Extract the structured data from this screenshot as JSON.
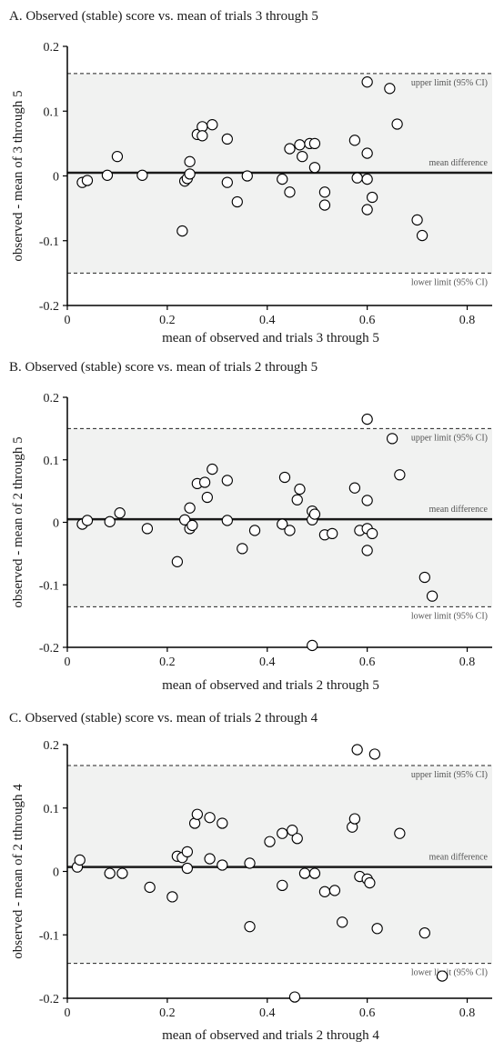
{
  "chart_data": [
    {
      "type": "scatter",
      "title": "A. Observed (stable) score vs. mean of trials 3 through 5",
      "xlabel": "mean of observed and trials 3 through 5",
      "ylabel": "observed - mean of 3 through 5",
      "xlim": [
        0,
        0.85
      ],
      "ylim": [
        -0.2,
        0.2
      ],
      "x_ticks": [
        "0",
        "0.2",
        "0.4",
        "0.6",
        "0.8"
      ],
      "y_ticks": [
        "0.2",
        "0.1",
        "0",
        "-0.1",
        "-0.2"
      ],
      "mean_difference": 0.005,
      "upper_limit": 0.158,
      "lower_limit": -0.15,
      "annotations": {
        "upper": "upper limit (95% CI)",
        "mean": "mean difference",
        "lower": "lower limit (95% CI)"
      },
      "grid": false,
      "points": [
        [
          0.03,
          -0.01
        ],
        [
          0.04,
          -0.007
        ],
        [
          0.08,
          0.001
        ],
        [
          0.1,
          0.03
        ],
        [
          0.15,
          0.001
        ],
        [
          0.23,
          -0.085
        ],
        [
          0.235,
          -0.008
        ],
        [
          0.24,
          -0.004
        ],
        [
          0.245,
          0.003
        ],
        [
          0.245,
          0.022
        ],
        [
          0.26,
          0.064
        ],
        [
          0.27,
          0.076
        ],
        [
          0.27,
          0.062
        ],
        [
          0.29,
          0.079
        ],
        [
          0.32,
          0.057
        ],
        [
          0.32,
          -0.01
        ],
        [
          0.34,
          -0.04
        ],
        [
          0.36,
          0.0
        ],
        [
          0.43,
          -0.005
        ],
        [
          0.445,
          0.042
        ],
        [
          0.445,
          -0.025
        ],
        [
          0.465,
          0.048
        ],
        [
          0.47,
          0.03
        ],
        [
          0.485,
          0.05
        ],
        [
          0.495,
          0.05
        ],
        [
          0.495,
          0.013
        ],
        [
          0.515,
          -0.025
        ],
        [
          0.515,
          -0.045
        ],
        [
          0.575,
          0.055
        ],
        [
          0.58,
          -0.003
        ],
        [
          0.6,
          0.145
        ],
        [
          0.6,
          0.035
        ],
        [
          0.6,
          -0.005
        ],
        [
          0.6,
          -0.052
        ],
        [
          0.61,
          -0.033
        ],
        [
          0.645,
          0.135
        ],
        [
          0.66,
          0.08
        ],
        [
          0.7,
          -0.068
        ],
        [
          0.71,
          -0.092
        ]
      ]
    },
    {
      "type": "scatter",
      "title": "B. Observed (stable) score vs. mean of trials 2 through 5",
      "xlabel": "mean of observed and trials 2 through 5",
      "ylabel": "observed - mean of 2 through 5",
      "xlim": [
        0,
        0.85
      ],
      "ylim": [
        -0.2,
        0.2
      ],
      "x_ticks": [
        "0",
        "0.2",
        "0.4",
        "0.6",
        "0.8"
      ],
      "y_ticks": [
        "0.2",
        "0.1",
        "0",
        "-0.1",
        "-0.2"
      ],
      "mean_difference": 0.005,
      "upper_limit": 0.15,
      "lower_limit": -0.135,
      "annotations": {
        "upper": "upper limit (95% CI)",
        "mean": "mean difference",
        "lower": "lower limit (95% CI)"
      },
      "grid": false,
      "points": [
        [
          0.03,
          -0.003
        ],
        [
          0.04,
          0.003
        ],
        [
          0.085,
          0.001
        ],
        [
          0.105,
          0.015
        ],
        [
          0.16,
          -0.01
        ],
        [
          0.22,
          -0.063
        ],
        [
          0.235,
          0.004
        ],
        [
          0.245,
          -0.01
        ],
        [
          0.245,
          0.023
        ],
        [
          0.25,
          -0.005
        ],
        [
          0.26,
          0.062
        ],
        [
          0.275,
          0.064
        ],
        [
          0.28,
          0.04
        ],
        [
          0.29,
          0.085
        ],
        [
          0.32,
          0.067
        ],
        [
          0.32,
          0.003
        ],
        [
          0.35,
          -0.042
        ],
        [
          0.375,
          -0.013
        ],
        [
          0.43,
          -0.003
        ],
        [
          0.435,
          0.072
        ],
        [
          0.445,
          -0.013
        ],
        [
          0.46,
          0.036
        ],
        [
          0.465,
          0.053
        ],
        [
          0.49,
          0.018
        ],
        [
          0.49,
          0.004
        ],
        [
          0.495,
          0.013
        ],
        [
          0.515,
          -0.02
        ],
        [
          0.53,
          -0.018
        ],
        [
          0.575,
          0.055
        ],
        [
          0.585,
          -0.013
        ],
        [
          0.6,
          0.165
        ],
        [
          0.6,
          0.035
        ],
        [
          0.6,
          -0.01
        ],
        [
          0.6,
          -0.045
        ],
        [
          0.61,
          -0.018
        ],
        [
          0.65,
          0.134
        ],
        [
          0.665,
          0.076
        ],
        [
          0.715,
          -0.088
        ],
        [
          0.73,
          -0.118
        ],
        [
          0.49,
          -0.197
        ]
      ]
    },
    {
      "type": "scatter",
      "title": "C. Observed (stable) score vs. mean of trials 2 through 4",
      "xlabel": "mean of observed and trials 2 through 4",
      "ylabel": "observed - mean of 2 tthrough 4",
      "xlim": [
        0,
        0.85
      ],
      "ylim": [
        -0.2,
        0.2
      ],
      "x_ticks": [
        "0",
        "0.2",
        "0.4",
        "0.6",
        "0.8"
      ],
      "y_ticks": [
        "0.2",
        "0.1",
        "0",
        "-0.1",
        "-0.2"
      ],
      "mean_difference": 0.007,
      "upper_limit": 0.167,
      "lower_limit": -0.145,
      "annotations": {
        "upper": "upper limit (95% CI)",
        "mean": "mean difference",
        "lower": "lower limit (95% CI)"
      },
      "grid": false,
      "points": [
        [
          0.02,
          0.007
        ],
        [
          0.025,
          0.018
        ],
        [
          0.085,
          -0.003
        ],
        [
          0.11,
          -0.003
        ],
        [
          0.165,
          -0.025
        ],
        [
          0.21,
          -0.04
        ],
        [
          0.22,
          0.024
        ],
        [
          0.23,
          0.022
        ],
        [
          0.24,
          0.031
        ],
        [
          0.24,
          0.005
        ],
        [
          0.255,
          0.076
        ],
        [
          0.26,
          0.09
        ],
        [
          0.285,
          0.085
        ],
        [
          0.285,
          0.02
        ],
        [
          0.31,
          0.076
        ],
        [
          0.31,
          0.01
        ],
        [
          0.365,
          0.013
        ],
        [
          0.365,
          -0.087
        ],
        [
          0.405,
          0.047
        ],
        [
          0.43,
          0.06
        ],
        [
          0.43,
          -0.022
        ],
        [
          0.45,
          0.065
        ],
        [
          0.46,
          0.052
        ],
        [
          0.475,
          -0.003
        ],
        [
          0.495,
          -0.003
        ],
        [
          0.515,
          -0.032
        ],
        [
          0.535,
          -0.03
        ],
        [
          0.55,
          -0.08
        ],
        [
          0.57,
          0.07
        ],
        [
          0.575,
          0.083
        ],
        [
          0.58,
          0.192
        ],
        [
          0.585,
          -0.008
        ],
        [
          0.6,
          -0.012
        ],
        [
          0.605,
          -0.018
        ],
        [
          0.615,
          0.185
        ],
        [
          0.62,
          -0.09
        ],
        [
          0.665,
          0.06
        ],
        [
          0.715,
          -0.097
        ],
        [
          0.75,
          -0.165
        ],
        [
          0.455,
          -0.198
        ]
      ]
    }
  ]
}
